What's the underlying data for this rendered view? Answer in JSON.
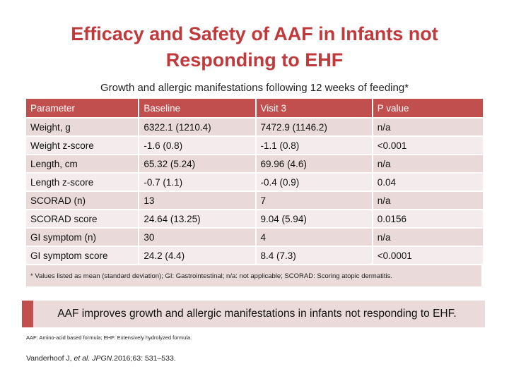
{
  "title": {
    "line1": "Efficacy and Safety of AAF in Infants not",
    "line2": "Responding to EHF"
  },
  "subtitle": "Growth and allergic manifestations following 12 weeks of feeding*",
  "table": {
    "headers": [
      "Parameter",
      "Baseline",
      "Visit 3",
      "P value"
    ],
    "rows": [
      [
        "Weight, g",
        "6322.1 (1210.4)",
        "7472.9 (1146.2)",
        "n/a"
      ],
      [
        "Weight z-score",
        "-1.6 (0.8)",
        "-1.1 (0.8)",
        "<0.001"
      ],
      [
        "Length, cm",
        "65.32 (5.24)",
        "69.96 (4.6)",
        "n/a"
      ],
      [
        "Length z-score",
        "-0.7 (1.1)",
        "-0.4 (0.9)",
        "0.04"
      ],
      [
        "SCORAD (n)",
        "13",
        "7",
        "n/a"
      ],
      [
        "SCORAD score",
        "24.64 (13.25)",
        "9.04 (5.94)",
        "0.0156"
      ],
      [
        "GI symptom (n)",
        "30",
        "4",
        "n/a"
      ],
      [
        "GI symptom score",
        "24.2 (4.4)",
        "8.4 (7.3)",
        "<0.0001"
      ]
    ],
    "footnote": "* Values listed as mean (standard deviation); GI: Gastrointestinal; n/a: not applicable; SCORAD: Scoring atopic dermatitis."
  },
  "callout": "AAF improves growth and allergic manifestations in infants not responding to EHF.",
  "abbreviations": "AAF: Amino-acid based formula; EHF: Extensively hydrolyzed formula.",
  "reference": {
    "authors": "Vanderhoof J, ",
    "etal": "et al.",
    "journal": "JPGN",
    "citation": ".2016;63: 531–533."
  },
  "colors": {
    "title": "#c0393b",
    "header_bg": "#c04f4e",
    "row_dark": "#ead9d9",
    "row_light": "#f4ecec"
  }
}
